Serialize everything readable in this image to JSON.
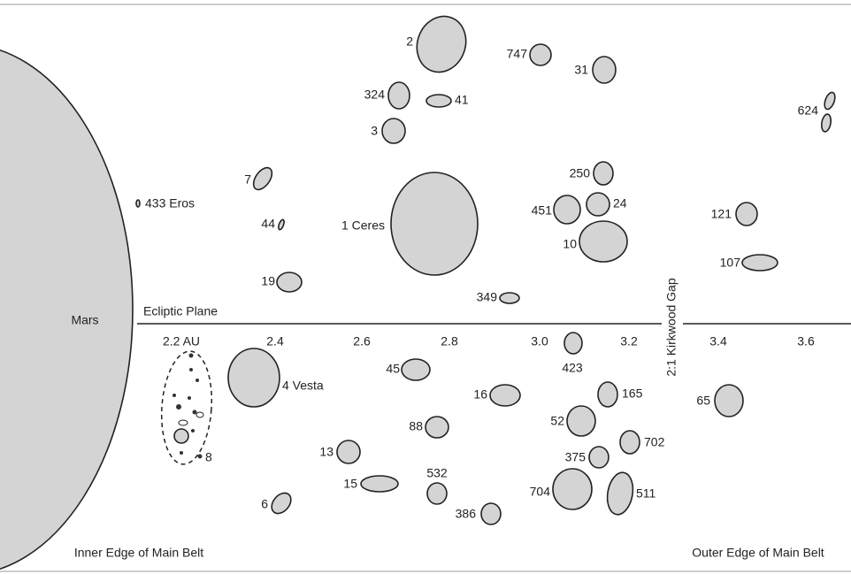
{
  "labels": {
    "mars": "Mars",
    "ecliptic": "Ecliptic Plane",
    "kirkwood": "2:1 Kirkwood Gap",
    "eros": "433 Eros",
    "ceres": "1 Ceres",
    "vesta": "4 Vesta",
    "inner_edge": "Inner Edge of Main Belt",
    "outer_edge": "Outer Edge of Main Belt",
    "group_8": "8"
  },
  "axis": [
    "2.2 AU",
    "2.4",
    "2.6",
    "2.8",
    "3.0",
    "3.2",
    "3.4",
    "3.6"
  ],
  "asteroids": [
    "2",
    "747",
    "31",
    "324",
    "41",
    "3",
    "624",
    "250",
    "7",
    "451",
    "24",
    "44",
    "121",
    "10",
    "107",
    "19",
    "349",
    "45",
    "423",
    "16",
    "165",
    "52",
    "65",
    "88",
    "702",
    "375",
    "13",
    "532",
    "15",
    "704",
    "511",
    "386",
    "6"
  ]
}
